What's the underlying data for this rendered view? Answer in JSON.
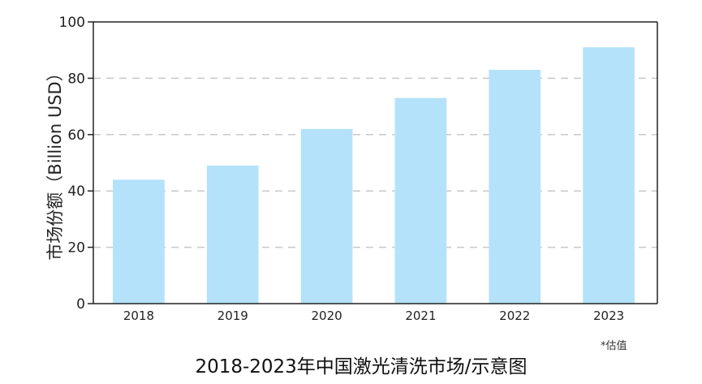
{
  "chart_data": {
    "type": "bar",
    "title": "2018-2023年中国激光清洗市场/示意图",
    "ylabel": "市场份额（Billion USD）",
    "xlabel": "",
    "note": "*估值",
    "categories": [
      "2018",
      "2019",
      "2020",
      "2021",
      "2022",
      "2023"
    ],
    "values": [
      44,
      49,
      62,
      73,
      83,
      91
    ],
    "ylim": [
      0,
      100
    ],
    "yticks": [
      0,
      20,
      40,
      60,
      80,
      100
    ],
    "grid": true,
    "bar_color": "#b4e2fa",
    "grid_color": "#c8c8c8",
    "axis_color": "#222222"
  }
}
